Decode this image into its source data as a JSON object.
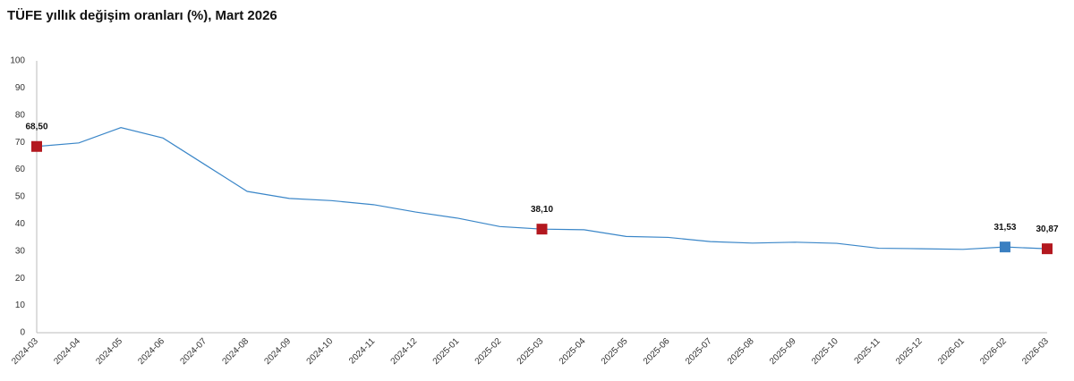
{
  "chart_data": {
    "type": "line",
    "title": "TÜFE yıllık değişim oranları (%), Mart 2026",
    "categories": [
      "2024-03",
      "2024-04",
      "2024-05",
      "2024-06",
      "2024-07",
      "2024-08",
      "2024-09",
      "2024-10",
      "2024-11",
      "2024-12",
      "2025-01",
      "2025-02",
      "2025-03",
      "2025-04",
      "2025-05",
      "2025-06",
      "2025-07",
      "2025-08",
      "2025-09",
      "2025-10",
      "2025-11",
      "2025-12",
      "2026-01",
      "2026-02",
      "2026-03"
    ],
    "series": [
      {
        "color": "#3a86c8",
        "values": [
          68.5,
          69.8,
          75.45,
          71.6,
          61.78,
          51.97,
          49.38,
          48.58,
          47.09,
          44.38,
          42.12,
          39.05,
          38.1,
          37.86,
          35.41,
          35.05,
          33.52,
          32.95,
          33.29,
          32.87,
          31.07,
          30.89,
          30.65,
          31.53,
          30.87
        ],
        "value_labels": [
          "68,50",
          null,
          null,
          null,
          null,
          null,
          null,
          null,
          null,
          null,
          null,
          null,
          "38,10",
          null,
          null,
          null,
          null,
          null,
          null,
          null,
          null,
          null,
          null,
          "31,53",
          "30,87"
        ],
        "marker_colors": [
          "#b3181f",
          null,
          null,
          null,
          null,
          null,
          null,
          null,
          null,
          null,
          null,
          null,
          "#b3181f",
          null,
          null,
          null,
          null,
          null,
          null,
          null,
          null,
          null,
          null,
          "#3a7fc1",
          "#b3181f"
        ]
      }
    ],
    "ylim": [
      0,
      100
    ],
    "yticks": [
      0,
      10,
      20,
      30,
      40,
      50,
      60,
      70,
      80,
      90,
      100
    ],
    "grid": false
  }
}
